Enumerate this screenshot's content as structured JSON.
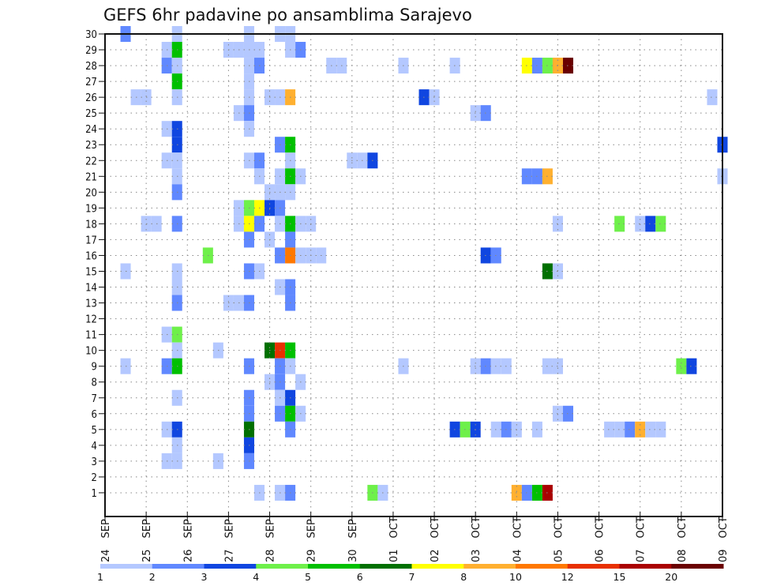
{
  "chart_data": {
    "type": "heatmap",
    "title": "GEFS 6hr padavine po ansamblima Sarajevo",
    "xlabel": "",
    "ylabel": "",
    "x_unit": "6-hour step from 24 SEP 00Z",
    "x_range": [
      0,
      60
    ],
    "y_range": [
      0,
      30
    ],
    "y_ticks": [
      1,
      2,
      3,
      4,
      5,
      6,
      7,
      8,
      9,
      10,
      11,
      12,
      13,
      14,
      15,
      16,
      17,
      18,
      19,
      20,
      21,
      22,
      23,
      24,
      25,
      26,
      27,
      28,
      29,
      30
    ],
    "x_ticks": [
      {
        "day": "24",
        "mon": "SEP"
      },
      {
        "day": "25",
        "mon": "SEP"
      },
      {
        "day": "26",
        "mon": "SEP"
      },
      {
        "day": "27",
        "mon": "SEP"
      },
      {
        "day": "28",
        "mon": "SEP"
      },
      {
        "day": "29",
        "mon": "SEP"
      },
      {
        "day": "30",
        "mon": "SEP"
      },
      {
        "day": "01",
        "mon": "OCT"
      },
      {
        "day": "02",
        "mon": "OCT"
      },
      {
        "day": "03",
        "mon": "OCT"
      },
      {
        "day": "04",
        "mon": "OCT"
      },
      {
        "day": "05",
        "mon": "OCT"
      },
      {
        "day": "06",
        "mon": "OCT"
      },
      {
        "day": "07",
        "mon": "OCT"
      },
      {
        "day": "08",
        "mon": "OCT"
      },
      {
        "day": "09",
        "mon": "OCT"
      }
    ],
    "grid": true,
    "colorbar": {
      "placement": "bottom",
      "labels": [
        "1",
        "2",
        "3",
        "4",
        "5",
        "6",
        "7",
        "8",
        "10",
        "12",
        "15",
        "20"
      ],
      "colors": [
        "#b4c8ff",
        "#6088ff",
        "#1046e0",
        "#6ef04a",
        "#00c000",
        "#007000",
        "#ffff00",
        "#ffb030",
        "#ff7800",
        "#e83000",
        "#aa0000",
        "#6a0000"
      ]
    },
    "cell_note": "cells: [member, step, color_class]; member = y value (0..30), step = 6-hour index from 24 SEP 00Z, color_class = index into colorbar.colors",
    "cells": [
      [
        30,
        2,
        1
      ],
      [
        30,
        7,
        0
      ],
      [
        30,
        14,
        0
      ],
      [
        30,
        17,
        0
      ],
      [
        30,
        18,
        0
      ],
      [
        29,
        6,
        0
      ],
      [
        29,
        7,
        4
      ],
      [
        29,
        12,
        0
      ],
      [
        29,
        13,
        0
      ],
      [
        29,
        14,
        0
      ],
      [
        29,
        15,
        0
      ],
      [
        29,
        18,
        0
      ],
      [
        29,
        19,
        1
      ],
      [
        28,
        6,
        1
      ],
      [
        28,
        7,
        0
      ],
      [
        28,
        14,
        0
      ],
      [
        28,
        15,
        1
      ],
      [
        28,
        22,
        0
      ],
      [
        28,
        23,
        0
      ],
      [
        28,
        29,
        0
      ],
      [
        28,
        34,
        0
      ],
      [
        28,
        41,
        6
      ],
      [
        28,
        42,
        1
      ],
      [
        28,
        43,
        3
      ],
      [
        28,
        44,
        7
      ],
      [
        28,
        45,
        11
      ],
      [
        27,
        7,
        4
      ],
      [
        27,
        14,
        0
      ],
      [
        26,
        3,
        0
      ],
      [
        26,
        4,
        0
      ],
      [
        26,
        7,
        0
      ],
      [
        26,
        14,
        0
      ],
      [
        26,
        16,
        0
      ],
      [
        26,
        17,
        0
      ],
      [
        26,
        18,
        7
      ],
      [
        26,
        31,
        2
      ],
      [
        26,
        32,
        0
      ],
      [
        26,
        59,
        0
      ],
      [
        25,
        13,
        0
      ],
      [
        25,
        14,
        1
      ],
      [
        25,
        36,
        0
      ],
      [
        25,
        37,
        1
      ],
      [
        24,
        6,
        0
      ],
      [
        24,
        7,
        2
      ],
      [
        24,
        14,
        0
      ],
      [
        23,
        7,
        2
      ],
      [
        23,
        17,
        1
      ],
      [
        23,
        18,
        4
      ],
      [
        23,
        60,
        2
      ],
      [
        22,
        6,
        0
      ],
      [
        22,
        7,
        0
      ],
      [
        22,
        14,
        0
      ],
      [
        22,
        15,
        1
      ],
      [
        22,
        18,
        0
      ],
      [
        22,
        24,
        0
      ],
      [
        22,
        25,
        0
      ],
      [
        22,
        26,
        2
      ],
      [
        21,
        7,
        0
      ],
      [
        21,
        15,
        0
      ],
      [
        21,
        17,
        0
      ],
      [
        21,
        18,
        4
      ],
      [
        21,
        19,
        0
      ],
      [
        21,
        41,
        1
      ],
      [
        21,
        42,
        1
      ],
      [
        21,
        43,
        7
      ],
      [
        21,
        60,
        0
      ],
      [
        20,
        7,
        1
      ],
      [
        20,
        16,
        0
      ],
      [
        20,
        17,
        0
      ],
      [
        20,
        18,
        0
      ],
      [
        19,
        13,
        0
      ],
      [
        19,
        14,
        3
      ],
      [
        19,
        15,
        6
      ],
      [
        19,
        16,
        2
      ],
      [
        19,
        17,
        1
      ],
      [
        18,
        4,
        0
      ],
      [
        18,
        5,
        0
      ],
      [
        18,
        7,
        1
      ],
      [
        18,
        13,
        0
      ],
      [
        18,
        14,
        6
      ],
      [
        18,
        15,
        1
      ],
      [
        18,
        17,
        0
      ],
      [
        18,
        18,
        4
      ],
      [
        18,
        19,
        0
      ],
      [
        18,
        20,
        0
      ],
      [
        18,
        44,
        0
      ],
      [
        18,
        50,
        3
      ],
      [
        18,
        52,
        0
      ],
      [
        18,
        53,
        2
      ],
      [
        18,
        54,
        3
      ],
      [
        17,
        14,
        1
      ],
      [
        17,
        16,
        0
      ],
      [
        17,
        18,
        1
      ],
      [
        16,
        10,
        3
      ],
      [
        16,
        17,
        1
      ],
      [
        16,
        18,
        8
      ],
      [
        16,
        19,
        0
      ],
      [
        16,
        20,
        0
      ],
      [
        16,
        21,
        0
      ],
      [
        16,
        37,
        2
      ],
      [
        16,
        38,
        1
      ],
      [
        15,
        2,
        0
      ],
      [
        15,
        7,
        0
      ],
      [
        15,
        14,
        1
      ],
      [
        15,
        15,
        0
      ],
      [
        15,
        43,
        5
      ],
      [
        15,
        44,
        0
      ],
      [
        14,
        7,
        0
      ],
      [
        14,
        17,
        0
      ],
      [
        14,
        18,
        1
      ],
      [
        13,
        7,
        1
      ],
      [
        13,
        12,
        0
      ],
      [
        13,
        13,
        0
      ],
      [
        13,
        14,
        1
      ],
      [
        13,
        18,
        1
      ],
      [
        11,
        6,
        0
      ],
      [
        11,
        7,
        3
      ],
      [
        10,
        7,
        0
      ],
      [
        10,
        11,
        0
      ],
      [
        10,
        16,
        5
      ],
      [
        10,
        17,
        9
      ],
      [
        10,
        18,
        4
      ],
      [
        9,
        2,
        0
      ],
      [
        9,
        6,
        1
      ],
      [
        9,
        7,
        4
      ],
      [
        9,
        14,
        1
      ],
      [
        9,
        17,
        1
      ],
      [
        9,
        18,
        0
      ],
      [
        9,
        29,
        0
      ],
      [
        9,
        36,
        0
      ],
      [
        9,
        37,
        1
      ],
      [
        9,
        38,
        0
      ],
      [
        9,
        39,
        0
      ],
      [
        9,
        43,
        0
      ],
      [
        9,
        44,
        0
      ],
      [
        9,
        56,
        3
      ],
      [
        9,
        57,
        2
      ],
      [
        8,
        16,
        0
      ],
      [
        8,
        17,
        1
      ],
      [
        8,
        19,
        0
      ],
      [
        7,
        7,
        0
      ],
      [
        7,
        14,
        1
      ],
      [
        7,
        17,
        0
      ],
      [
        7,
        18,
        2
      ],
      [
        6,
        14,
        1
      ],
      [
        6,
        17,
        1
      ],
      [
        6,
        18,
        4
      ],
      [
        6,
        19,
        0
      ],
      [
        6,
        44,
        0
      ],
      [
        6,
        45,
        1
      ],
      [
        5,
        6,
        0
      ],
      [
        5,
        7,
        2
      ],
      [
        5,
        14,
        5
      ],
      [
        5,
        18,
        1
      ],
      [
        5,
        34,
        2
      ],
      [
        5,
        35,
        3
      ],
      [
        5,
        36,
        2
      ],
      [
        5,
        38,
        0
      ],
      [
        5,
        39,
        1
      ],
      [
        5,
        40,
        0
      ],
      [
        5,
        42,
        0
      ],
      [
        5,
        49,
        0
      ],
      [
        5,
        50,
        0
      ],
      [
        5,
        51,
        1
      ],
      [
        5,
        52,
        7
      ],
      [
        5,
        53,
        0
      ],
      [
        5,
        54,
        0
      ],
      [
        4,
        7,
        0
      ],
      [
        4,
        14,
        2
      ],
      [
        3,
        6,
        0
      ],
      [
        3,
        7,
        0
      ],
      [
        3,
        11,
        0
      ],
      [
        3,
        14,
        1
      ],
      [
        1,
        15,
        0
      ],
      [
        1,
        17,
        0
      ],
      [
        1,
        18,
        1
      ],
      [
        1,
        26,
        3
      ],
      [
        1,
        27,
        0
      ],
      [
        1,
        40,
        7
      ],
      [
        1,
        41,
        1
      ],
      [
        1,
        42,
        4
      ],
      [
        1,
        43,
        10
      ]
    ]
  }
}
